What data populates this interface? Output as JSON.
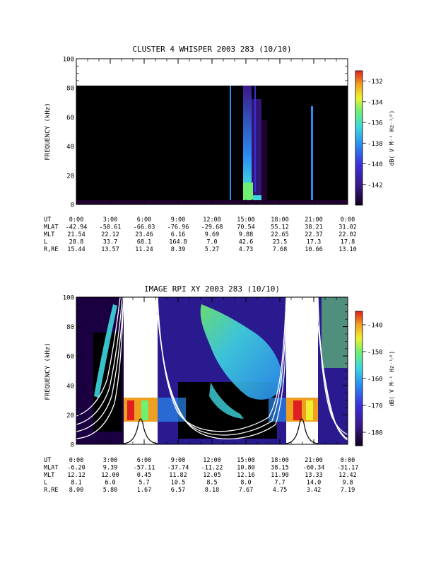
{
  "chart_data": [
    {
      "type": "heatmap",
      "title": "CLUSTER 4 WHISPER 2003 283 (10/10)",
      "ylabel": "FREQUENCY (kHz)",
      "yticks": [
        "0",
        "20",
        "40",
        "60",
        "80",
        "100"
      ],
      "ylim": [
        0,
        100
      ],
      "xlim_hours": [
        0,
        24
      ],
      "colorbar": {
        "label": "dB( V M⁻¹ Hz⁻¹⁄²)",
        "ticks": [
          "-132",
          "-134",
          "-136",
          "-138",
          "-140",
          "-142"
        ],
        "range": [
          -144,
          -131
        ]
      },
      "ephemeris": {
        "row_labels": [
          "UT",
          "MLAT",
          "MLT",
          "L",
          "R,RE"
        ],
        "columns": [
          [
            "0:00",
            "-42.94",
            "21.54",
            "28.8",
            "15.44"
          ],
          [
            "3:00",
            "-50.61",
            "22.12",
            "33.7",
            "13.57"
          ],
          [
            "6:00",
            "-66.03",
            "23.46",
            "68.1",
            "11.24"
          ],
          [
            "9:00",
            "-76.96",
            "6.16",
            "164.8",
            "8.39"
          ],
          [
            "12:00",
            "-29.68",
            "9.69",
            "7.0",
            "5.27"
          ],
          [
            "15:00",
            "70.54",
            "9.88",
            "42.6",
            "4.73"
          ],
          [
            "18:00",
            "55.12",
            "22.65",
            "23.5",
            "7.68"
          ],
          [
            "21:00",
            "38.21",
            "22.37",
            "17.3",
            "10.66"
          ],
          [
            "0:00",
            "31.02",
            "22.02",
            "17.8",
            "13.10"
          ]
        ]
      }
    },
    {
      "type": "heatmap",
      "title": "IMAGE RPI XY 2003 283 (10/10)",
      "ylabel": "FREQUENCY (kHz)",
      "yticks": [
        "0",
        "20",
        "40",
        "60",
        "80",
        "100"
      ],
      "ylim": [
        0,
        100
      ],
      "xlim_hours": [
        0,
        24
      ],
      "colorbar": {
        "label": "dB( V M⁻¹ Hz⁻¹⁄²)",
        "ticks": [
          "-140",
          "-150",
          "-160",
          "-170",
          "-180"
        ],
        "range": [
          -185,
          -135
        ]
      },
      "ephemeris": {
        "row_labels": [
          "UT",
          "MLAT",
          "MLT",
          "L",
          "R,RE"
        ],
        "columns": [
          [
            "0:00",
            "-6.20",
            "12.12",
            "8.1",
            "8.00"
          ],
          [
            "3:00",
            "9.39",
            "12.00",
            "6.0",
            "5.80"
          ],
          [
            "6:00",
            "-57.11",
            "0.45",
            "5.7",
            "1.67"
          ],
          [
            "9:00",
            "-37.74",
            "11.82",
            "10.5",
            "6.57"
          ],
          [
            "12:00",
            "-11.22",
            "12.05",
            "8.5",
            "8.18"
          ],
          [
            "15:00",
            "10.80",
            "12.16",
            "8.0",
            "7.67"
          ],
          [
            "18:00",
            "38.15",
            "11.90",
            "7.7",
            "4.75"
          ],
          [
            "21:00",
            "-60.34",
            "13.33",
            "14.0",
            "3.42"
          ],
          [
            "0:00",
            "-31.17",
            "12.42",
            "9.8",
            "7.19"
          ]
        ]
      }
    }
  ],
  "colors": {
    "background": "#ffffff",
    "spectrogram_bg": "#000000",
    "colormap": [
      "#20002e",
      "#3a1a8a",
      "#3b2fd8",
      "#2a8cf0",
      "#3fd6e0",
      "#70f070",
      "#f0f030",
      "#f0a020",
      "#e02020"
    ]
  }
}
